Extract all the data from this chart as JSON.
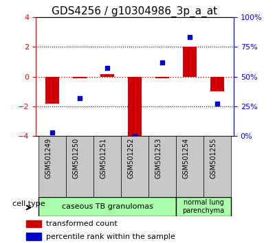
{
  "title": "GDS4256 / g10304986_3p_a_at",
  "samples": [
    "GSM501249",
    "GSM501250",
    "GSM501251",
    "GSM501252",
    "GSM501253",
    "GSM501254",
    "GSM501255"
  ],
  "transformed_counts": [
    -1.8,
    -0.1,
    0.15,
    -4.2,
    -0.1,
    2.0,
    -1.0
  ],
  "percentile_ranks": [
    3,
    32,
    57,
    0,
    62,
    83,
    27
  ],
  "ylim_left": [
    -4,
    4
  ],
  "ylim_right": [
    0,
    100
  ],
  "yticks_left": [
    -4,
    -2,
    0,
    2,
    4
  ],
  "yticks_right": [
    0,
    25,
    50,
    75,
    100
  ],
  "ytick_labels_right": [
    "0%",
    "25%",
    "50%",
    "75%",
    "100%"
  ],
  "cell_type_groups": [
    {
      "label": "caseous TB granulomas",
      "samples": [
        0,
        1,
        2,
        3,
        4
      ],
      "color": "#aaffaa"
    },
    {
      "label": "normal lung\nparenchyma",
      "samples": [
        5,
        6
      ],
      "color": "#aaffaa"
    }
  ],
  "bar_color": "#CC0000",
  "scatter_color": "#0000CC",
  "bar_width": 0.5,
  "hline_color": "#CC0000",
  "grid_color": "black",
  "cell_type_label": "cell type",
  "legend_red_label": "transformed count",
  "legend_blue_label": "percentile rank within the sample",
  "title_fontsize": 11,
  "tick_fontsize": 8,
  "label_fontsize": 8,
  "xtick_fontsize": 7,
  "cell_bg": "#c8c8c8"
}
